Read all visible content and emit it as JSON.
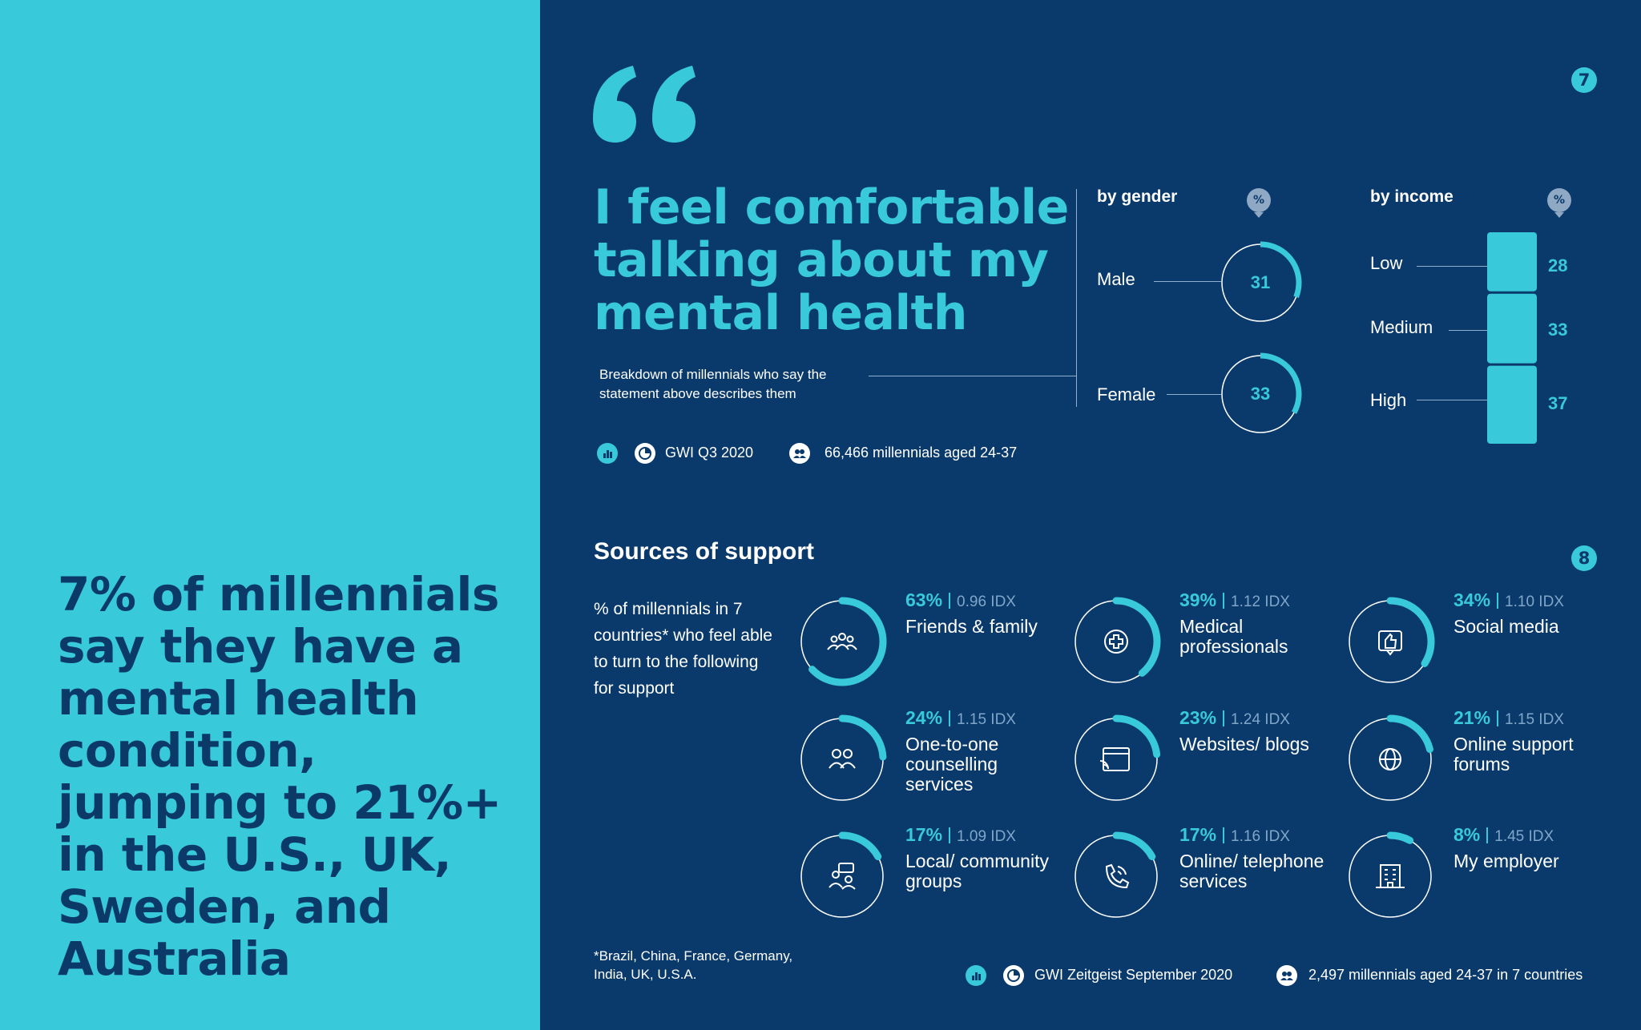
{
  "left_panel": {
    "headline": "7% of millennials say they have a mental health condition, jumping to 21%+ in the U.S., UK, Sweden, and Australia"
  },
  "page_numbers": [
    "7",
    "8"
  ],
  "quote": {
    "text": "I feel comfortable talking about my mental health",
    "breakdown_note": "Breakdown of millennials who say the statement above describes them"
  },
  "source_top": {
    "survey": "GWI Q3 2020",
    "sample": "66,466 millennials aged 24-37"
  },
  "sources_section": {
    "title": "Sources of support",
    "subtitle": "% of millennials in 7 countries* who feel able to turn to the following for support",
    "footnote": "*Brazil, China, France, Germany, India, UK, U.S.A."
  },
  "source_bottom": {
    "survey": "GWI Zeitgeist September 2020",
    "sample": "2,497 millennials aged 24-37 in 7 countries"
  },
  "colors": {
    "accent": "#38c9da",
    "navy": "#0a3a6b",
    "left_bg": "#38c9da"
  },
  "chart_data": [
    {
      "type": "pie",
      "title": "by gender",
      "unit_badge": "%",
      "categories": [
        "Male",
        "Female"
      ],
      "values": [
        31,
        33
      ],
      "value_labels": [
        "31",
        "33"
      ]
    },
    {
      "type": "bar",
      "title": "by income",
      "unit_badge": "%",
      "categories": [
        "Low",
        "Medium",
        "High"
      ],
      "values": [
        28,
        33,
        37
      ],
      "value_labels": [
        "28",
        "33",
        "37"
      ]
    },
    {
      "type": "pie",
      "title": "Sources of support",
      "items": [
        {
          "label": "Friends & family",
          "value": 63,
          "pct": "63%",
          "idx": "0.96 IDX",
          "icon": "people-group-icon"
        },
        {
          "label": "Medical professionals",
          "value": 39,
          "pct": "39%",
          "idx": "1.12 IDX",
          "icon": "medical-cross-icon"
        },
        {
          "label": "Social media",
          "value": 34,
          "pct": "34%",
          "idx": "1.10 IDX",
          "icon": "thumbs-up-icon"
        },
        {
          "label": "One-to-one counselling services",
          "value": 24,
          "pct": "24%",
          "idx": "1.15 IDX",
          "icon": "two-people-icon"
        },
        {
          "label": "Websites/ blogs",
          "value": 23,
          "pct": "23%",
          "idx": "1.24 IDX",
          "icon": "browser-window-icon"
        },
        {
          "label": "Online support forums",
          "value": 21,
          "pct": "21%",
          "idx": "1.15 IDX",
          "icon": "globe-icon"
        },
        {
          "label": "Local/ community groups",
          "value": 17,
          "pct": "17%",
          "idx": "1.09 IDX",
          "icon": "group-chat-icon"
        },
        {
          "label": "Online/ telephone services",
          "value": 17,
          "pct": "17%",
          "idx": "1.16 IDX",
          "icon": "phone-icon"
        },
        {
          "label": "My employer",
          "value": 8,
          "pct": "8%",
          "idx": "1.45 IDX",
          "icon": "office-building-icon"
        }
      ]
    }
  ]
}
